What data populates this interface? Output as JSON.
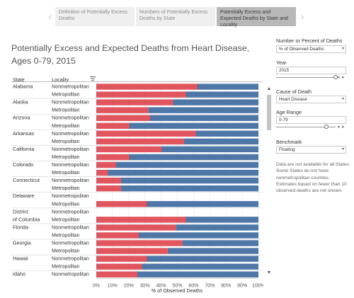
{
  "tabs": [
    {
      "label": "Definition of Potentially Excess Deaths",
      "active": false
    },
    {
      "label": "Numbers of Potentially Excess Deaths by State",
      "active": false
    },
    {
      "label": "Potentially Excess and Expected Deaths by State and Locality",
      "active": true
    }
  ],
  "header": {
    "title": "Potentially Excess and Expected Deaths from Heart Disease, Ages 0-79, 2015",
    "state_col": "State",
    "locality_col": "Locality"
  },
  "filters": {
    "measure": {
      "label": "Number or Percent of Deaths",
      "value": "% of Observed Deaths"
    },
    "year": {
      "label": "Year",
      "value": "2015",
      "position": 1.0
    },
    "cause": {
      "label": "Cause of Death",
      "value": "Heart Disease"
    },
    "age": {
      "label": "Age Range",
      "value": "0-79",
      "position": 0.85
    },
    "benchmark": {
      "label": "Benchmark",
      "value": "Floating"
    },
    "note": "Data are not available for all States.  Some States do not have nonmetropolitan counties.  Estimates based on fewer than 10 observed deaths are not shown."
  },
  "colors": {
    "excess": "#e0555e",
    "expected": "#4e77a8",
    "hairline": "#e6e6e6"
  },
  "chart_data": {
    "type": "bar",
    "orientation": "horizontal",
    "stacked": true,
    "xlabel": "% of Observed Deaths",
    "xlim": [
      0,
      100
    ],
    "xticks": [
      "0%",
      "10%",
      "20%",
      "30%",
      "40%",
      "50%",
      "60%",
      "70%",
      "80%",
      "90%",
      "100%"
    ],
    "groups": [
      {
        "state": "Alabama",
        "rows": [
          {
            "locality": "Nonmetropolitan",
            "excess": 62
          },
          {
            "locality": "Metropolitan",
            "excess": 55
          }
        ]
      },
      {
        "state": "Alaska",
        "rows": [
          {
            "locality": "Nonmetropolitan",
            "excess": 47
          },
          {
            "locality": "Metropolitan",
            "excess": 32
          }
        ]
      },
      {
        "state": "Arizona",
        "rows": [
          {
            "locality": "Nonmetropolitan",
            "excess": 33
          },
          {
            "locality": "Metropolitan",
            "excess": 20
          }
        ]
      },
      {
        "state": "Arkansas",
        "rows": [
          {
            "locality": "Nonmetropolitan",
            "excess": 61
          },
          {
            "locality": "Metropolitan",
            "excess": 54
          }
        ]
      },
      {
        "state": "California",
        "rows": [
          {
            "locality": "Nonmetropolitan",
            "excess": 40
          },
          {
            "locality": "Metropolitan",
            "excess": 20
          }
        ]
      },
      {
        "state": "Colorado",
        "rows": [
          {
            "locality": "Nonmetropolitan",
            "excess": 12
          },
          {
            "locality": "Metropolitan",
            "excess": 7
          }
        ]
      },
      {
        "state": "Connecticut",
        "rows": [
          {
            "locality": "Nonmetropolitan",
            "excess": 15
          },
          {
            "locality": "Metropolitan",
            "excess": 15
          }
        ]
      },
      {
        "state": "Delaware",
        "rows": [
          {
            "locality": "Nonmetropolitan",
            "excess": null
          },
          {
            "locality": "Metropolitan",
            "excess": 31
          }
        ]
      },
      {
        "state": "District of Columbia",
        "rows": [
          {
            "locality": "Nonmetropolitan",
            "excess": null
          },
          {
            "locality": "Metropolitan",
            "excess": 55
          }
        ]
      },
      {
        "state": "Florida",
        "rows": [
          {
            "locality": "Nonmetropolitan",
            "excess": 49
          },
          {
            "locality": "Metropolitan",
            "excess": 26
          }
        ]
      },
      {
        "state": "Georgia",
        "rows": [
          {
            "locality": "Nonmetropolitan",
            "excess": 53
          },
          {
            "locality": "Metropolitan",
            "excess": 44
          }
        ]
      },
      {
        "state": "Hawaii",
        "rows": [
          {
            "locality": "Nonmetropolitan",
            "excess": 31
          },
          {
            "locality": "Metropolitan",
            "excess": 28
          }
        ]
      },
      {
        "state": "Idaho",
        "rows": [
          {
            "locality": "Nonmetropolitan",
            "excess": 25
          }
        ]
      }
    ]
  }
}
